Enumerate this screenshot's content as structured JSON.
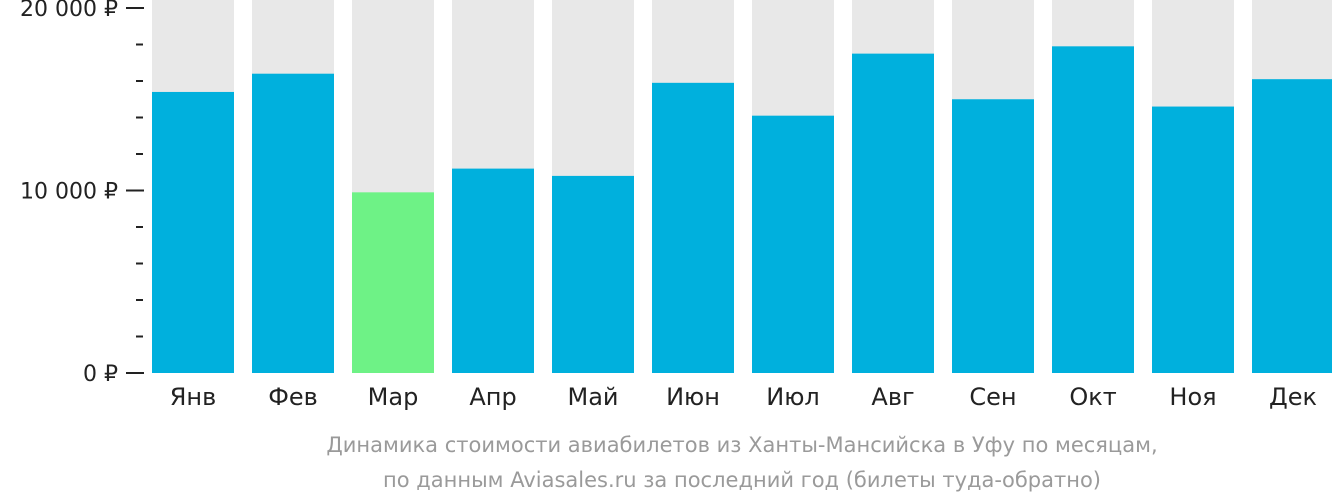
{
  "chart_data": {
    "type": "bar",
    "categories": [
      "Янв",
      "Фев",
      "Мар",
      "Апр",
      "Май",
      "Июн",
      "Июл",
      "Авг",
      "Сен",
      "Окт",
      "Ноя",
      "Дек"
    ],
    "values": [
      15400,
      16400,
      9900,
      11200,
      10800,
      15900,
      14100,
      17500,
      15000,
      17900,
      14600,
      16100
    ],
    "highlight_index": 2,
    "ylim": [
      0,
      20000
    ],
    "yticks": [
      {
        "value": 0,
        "label": "0 ₽"
      },
      {
        "value": 10000,
        "label": "10 000 ₽"
      },
      {
        "value": 20000,
        "label": "20 000 ₽"
      }
    ],
    "minor_tick_step": 2000,
    "colors": {
      "bar": "#00b0dd",
      "highlight": "#6ef286",
      "background_bar": "#e8e8e8",
      "tick": "#222222"
    }
  },
  "caption": {
    "line1": "Динамика стоимости авиабилетов из Ханты-Мансийска в Уфу по месяцам,",
    "line2": "по данным Aviasales.ru за последний год (билеты туда-обратно)"
  }
}
